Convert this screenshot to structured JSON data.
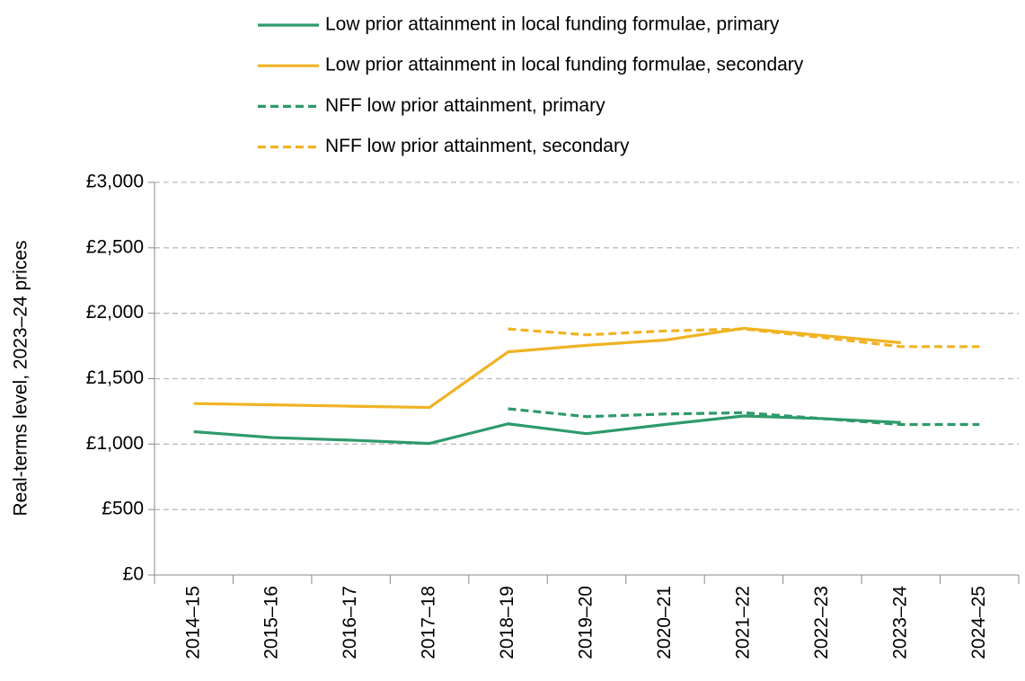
{
  "chart_data": {
    "type": "line",
    "y_label": "Real-terms level, 2023–24 prices",
    "categories": [
      "2014–15",
      "2015–16",
      "2016–17",
      "2017–18",
      "2018–19",
      "2019–20",
      "2020–21",
      "2021–22",
      "2022–23",
      "2023–24",
      "2024–25"
    ],
    "series": [
      {
        "name": "Low prior attainment in local funding formulae, primary",
        "color": "#2e9a6a",
        "dashed": false,
        "values": [
          1095,
          1050,
          1030,
          1005,
          1155,
          1080,
          1150,
          1215,
          1195,
          1165,
          null
        ]
      },
      {
        "name": "Low prior attainment in local funding formulae, secondary",
        "color": "#f0b323",
        "dashed": false,
        "values": [
          1310,
          1300,
          1290,
          1280,
          1705,
          1755,
          1795,
          1885,
          1830,
          1775,
          null
        ]
      },
      {
        "name": "NFF low prior attainment, primary",
        "color": "#2e9a6a",
        "dashed": true,
        "values": [
          null,
          null,
          null,
          null,
          1270,
          1210,
          1230,
          1240,
          1195,
          1150,
          1150
        ]
      },
      {
        "name": "NFF low prior attainment, secondary",
        "color": "#f0b323",
        "dashed": true,
        "values": [
          null,
          null,
          null,
          null,
          1880,
          1835,
          1865,
          1880,
          1815,
          1745,
          1745
        ]
      }
    ],
    "ylim": [
      0,
      3000
    ],
    "yticks": [
      {
        "value": 0,
        "label": "£0"
      },
      {
        "value": 500,
        "label": "£500"
      },
      {
        "value": 1000,
        "label": "£1,000"
      },
      {
        "value": 1500,
        "label": "£1,500"
      },
      {
        "value": 2000,
        "label": "£2,000"
      },
      {
        "value": 2500,
        "label": "£2,500"
      },
      {
        "value": 3000,
        "label": "£3,000"
      }
    ],
    "grid": true,
    "legend": "top"
  }
}
